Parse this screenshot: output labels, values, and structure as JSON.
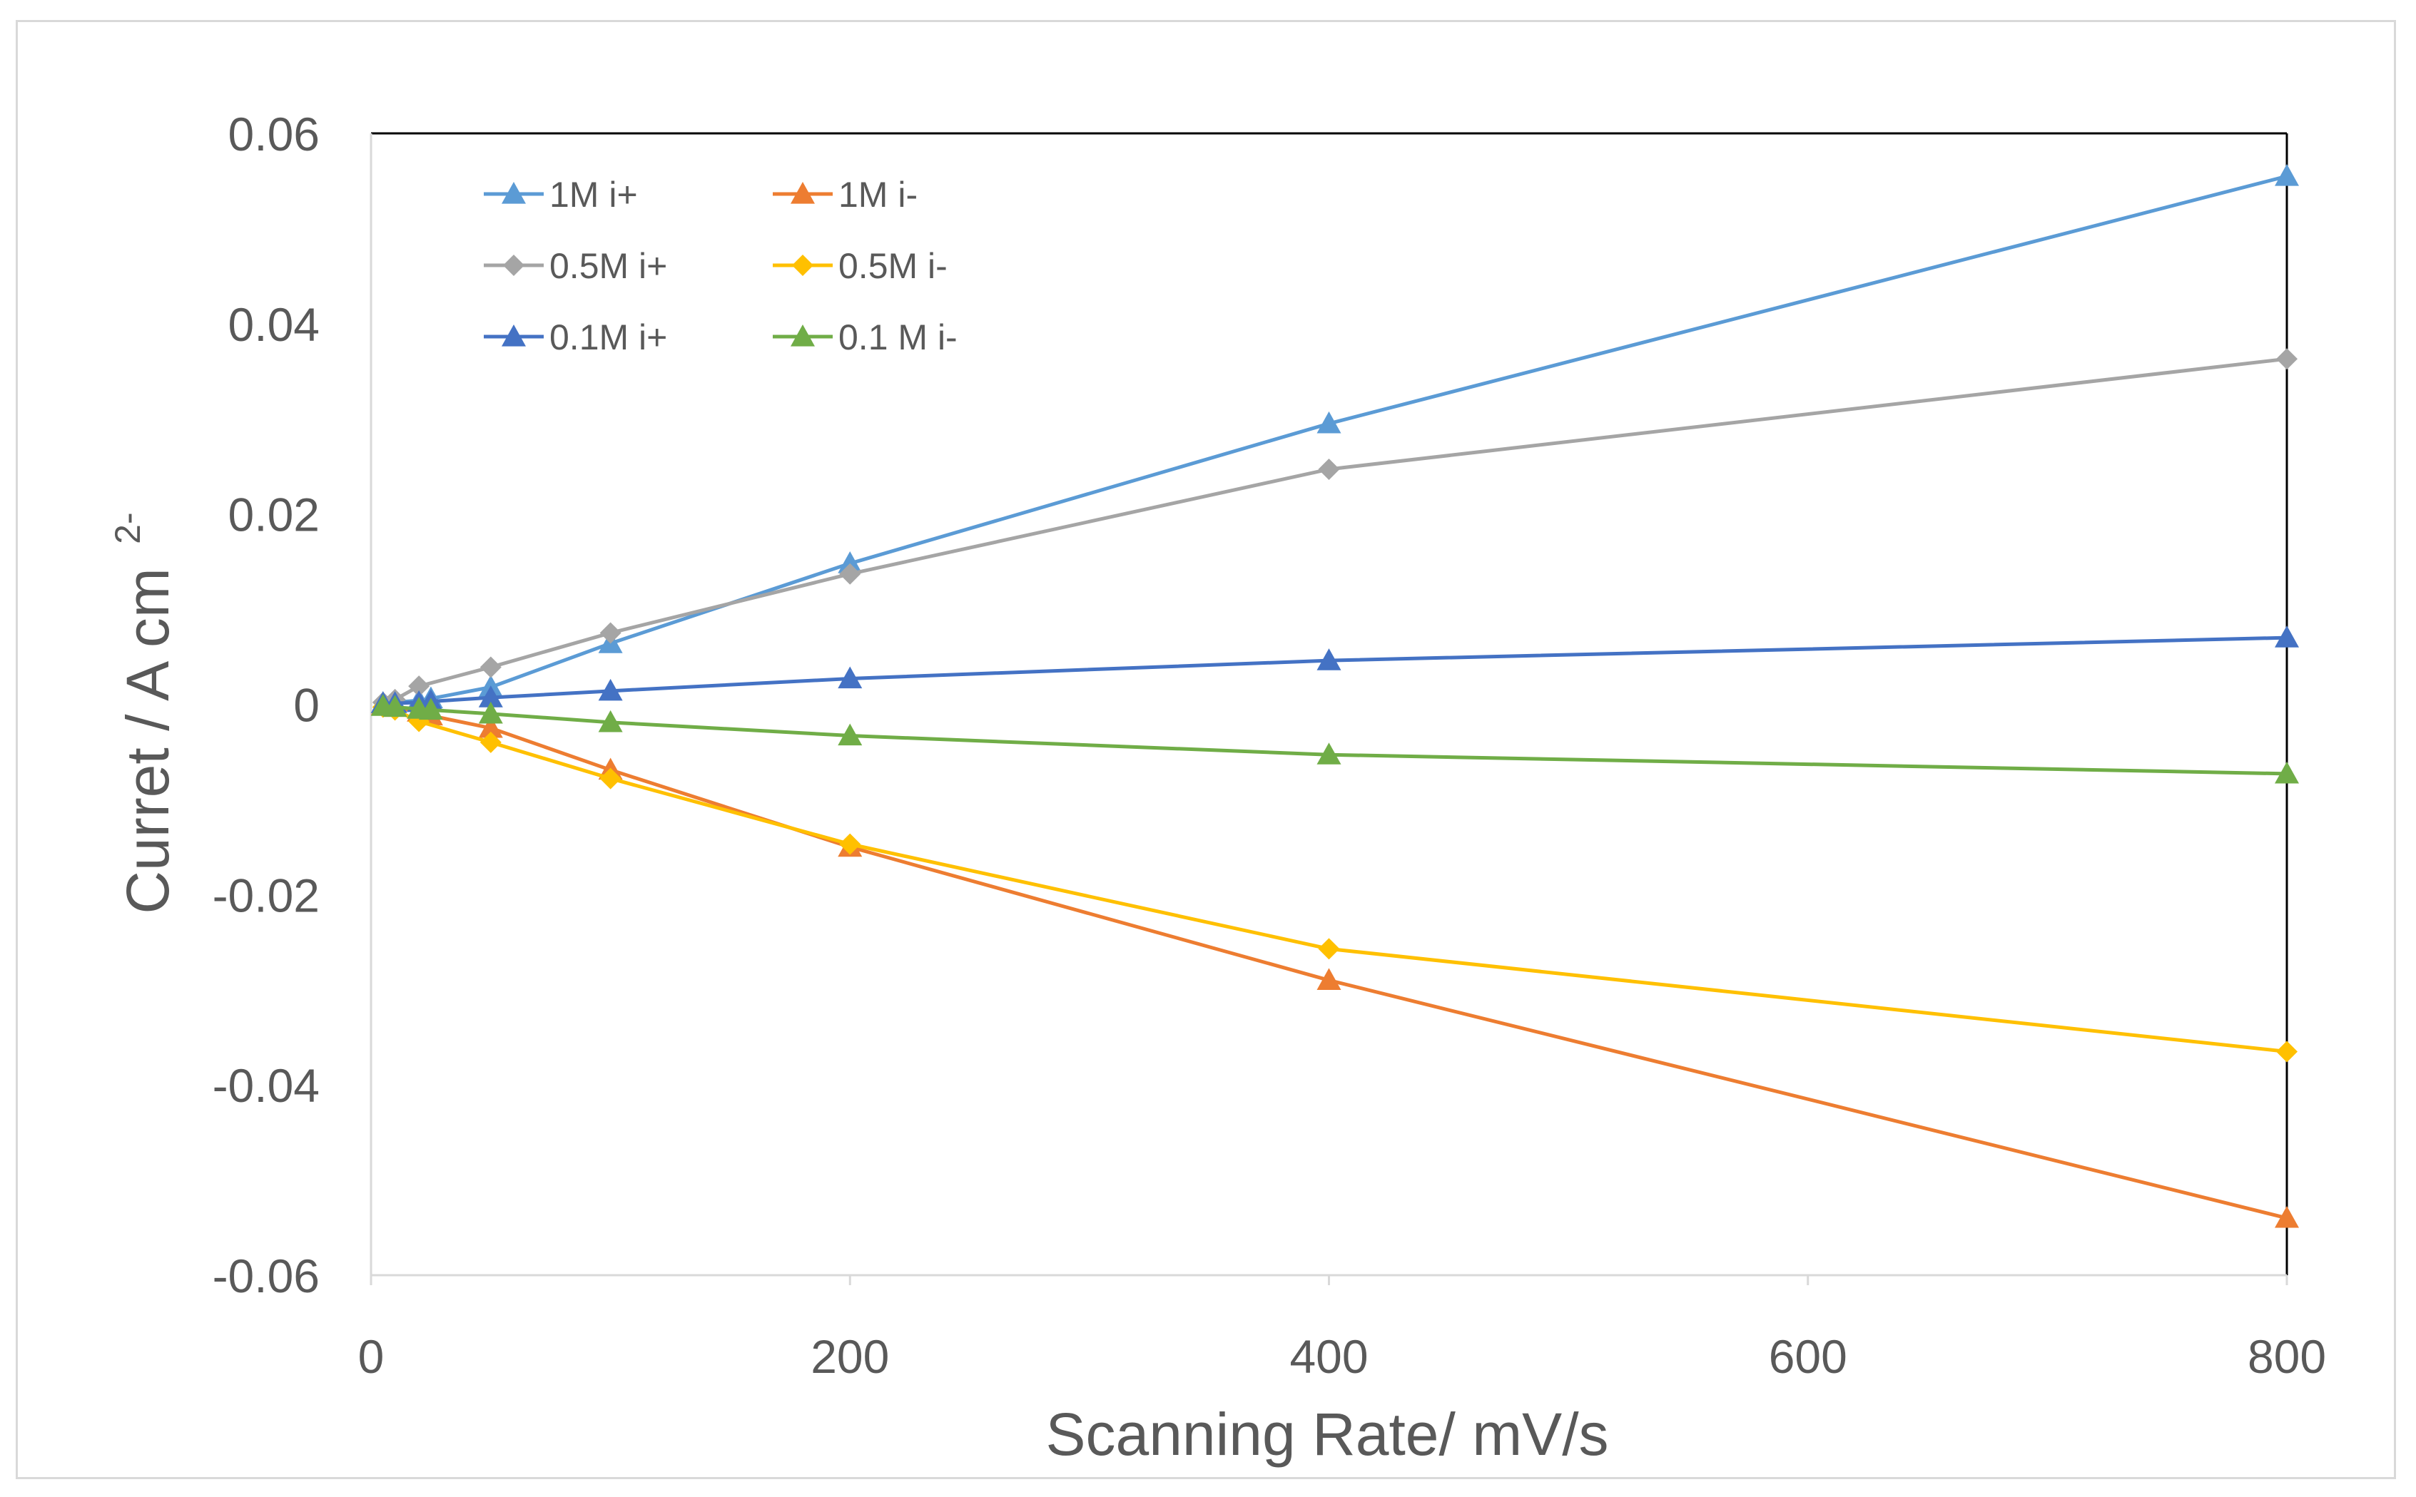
{
  "chart_data": {
    "type": "line",
    "title": "",
    "xlabel": "Scanning Rate/ mV/s",
    "ylabel": "Curret / A cm",
    "ylabel_superscript": "2-",
    "xlim": [
      0,
      800
    ],
    "ylim": [
      -0.06,
      0.06
    ],
    "xticks": [
      0,
      200,
      400,
      600,
      800
    ],
    "xtick_labels": [
      "0",
      "200",
      "400",
      "600",
      "800"
    ],
    "yticks": [
      0.06,
      0.04,
      0.02,
      0,
      -0.02,
      -0.04,
      -0.06
    ],
    "ytick_labels": [
      "0.06",
      "0.04",
      "0.02",
      "0",
      "-0.02",
      "-0.04",
      "-0.06"
    ],
    "grid": false,
    "legend_position": "top-left",
    "series": [
      {
        "name": "1M i+",
        "color": "#5b9bd5",
        "marker": "triangle",
        "x": [
          5,
          10,
          20,
          25,
          50,
          100,
          200,
          400,
          800
        ],
        "y": [
          0.0001,
          0.0002,
          0.0004,
          0.0006,
          0.0018,
          0.0064,
          0.0148,
          0.0295,
          0.0555
        ]
      },
      {
        "name": "1M i-",
        "color": "#ed7d31",
        "marker": "triangle",
        "x": [
          5,
          10,
          20,
          25,
          50,
          100,
          200,
          400,
          800
        ],
        "y": [
          -0.0001,
          -0.0003,
          -0.0008,
          -0.0012,
          -0.0025,
          -0.0069,
          -0.015,
          -0.029,
          -0.054
        ]
      },
      {
        "name": "0.5M i+",
        "color": "#a5a5a5",
        "marker": "diamond",
        "x": [
          5,
          10,
          20,
          50,
          100,
          200,
          400,
          800
        ],
        "y": [
          0.0002,
          0.0005,
          0.0019,
          0.0039,
          0.0075,
          0.0137,
          0.0247,
          0.0363
        ]
      },
      {
        "name": "0.5M i-",
        "color": "#ffc000",
        "marker": "diamond",
        "x": [
          5,
          10,
          20,
          50,
          100,
          200,
          400,
          800
        ],
        "y": [
          -0.0003,
          -0.0006,
          -0.0018,
          -0.004,
          -0.0078,
          -0.0147,
          -0.0257,
          -0.0365
        ]
      },
      {
        "name": "0.1M i+",
        "color": "#4472c4",
        "marker": "triangle",
        "x": [
          5,
          10,
          20,
          25,
          50,
          100,
          200,
          400,
          800
        ],
        "y": [
          0.0001,
          0.0001,
          0.0002,
          0.0003,
          0.0007,
          0.0014,
          0.0027,
          0.0046,
          0.007
        ]
      },
      {
        "name": "0.1 M i-",
        "color": "#70ad47",
        "marker": "triangle",
        "x": [
          5,
          10,
          20,
          25,
          50,
          100,
          200,
          400,
          800
        ],
        "y": [
          -0.0002,
          -0.0003,
          -0.0005,
          -0.0006,
          -0.001,
          -0.0019,
          -0.0033,
          -0.0053,
          -0.0073
        ]
      }
    ]
  }
}
